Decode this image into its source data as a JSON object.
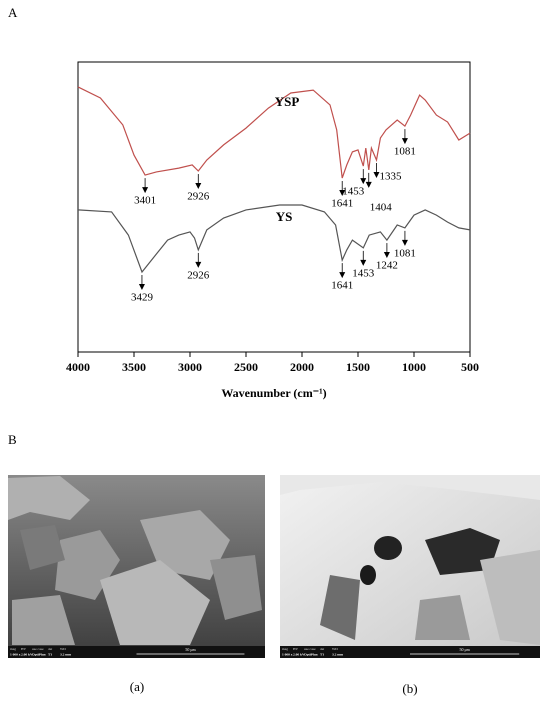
{
  "chart_data": {
    "type": "line",
    "xlabel": "Wavenumber (cm⁻¹)",
    "xlim": [
      4000,
      500
    ],
    "xticks": [
      4000,
      3500,
      3000,
      2500,
      2000,
      1500,
      1000,
      500
    ],
    "ylim": [
      0,
      100
    ],
    "series": [
      {
        "name": "YSP",
        "color": "#c0504d",
        "x": [
          4000,
          3800,
          3600,
          3500,
          3401,
          3300,
          3100,
          2980,
          2926,
          2850,
          2700,
          2500,
          2300,
          2100,
          1900,
          1750,
          1690,
          1641,
          1600,
          1550,
          1500,
          1453,
          1430,
          1404,
          1380,
          1335,
          1300,
          1250,
          1150,
          1081,
          1030,
          950,
          900,
          800,
          700,
          600,
          500
        ],
        "values": [
          91.4,
          87.6,
          78.3,
          67.9,
          61.0,
          62.1,
          63.4,
          64.5,
          62.4,
          66.2,
          71.4,
          77.2,
          84.1,
          89.3,
          90.3,
          85.2,
          76.6,
          60.0,
          64.5,
          69.0,
          69.7,
          64.1,
          70.3,
          62.8,
          70.3,
          66.2,
          73.8,
          76.6,
          80.0,
          77.9,
          81.7,
          88.6,
          86.9,
          81.7,
          79.3,
          73.1,
          75.5
        ],
        "peaks": [
          3401,
          2926,
          1641,
          1453,
          1404,
          1335,
          1081
        ]
      },
      {
        "name": "YS",
        "color": "#555555",
        "x": [
          4000,
          3700,
          3550,
          3429,
          3300,
          3200,
          3100,
          3000,
          2960,
          2926,
          2850,
          2700,
          2500,
          2200,
          2000,
          1800,
          1700,
          1641,
          1600,
          1550,
          1453,
          1400,
          1300,
          1242,
          1150,
          1081,
          1000,
          900,
          800,
          700,
          600,
          500
        ],
        "values": [
          49.0,
          48.3,
          40.3,
          27.6,
          33.8,
          38.6,
          40.3,
          41.4,
          39.3,
          35.2,
          42.1,
          46.2,
          49.0,
          50.7,
          50.7,
          48.3,
          43.8,
          31.7,
          35.2,
          38.6,
          35.9,
          40.3,
          41.4,
          38.6,
          43.8,
          42.8,
          47.2,
          49.0,
          47.2,
          44.8,
          42.8,
          42.1
        ],
        "peaks": [
          3429,
          2926,
          1641,
          1453,
          1242,
          1081
        ]
      }
    ]
  },
  "figure": {
    "panel_labels": [
      "A",
      "B"
    ],
    "images": [
      {
        "caption": "(a)",
        "info_header": [
          "mag",
          "HV",
          "use case",
          "det",
          "WD"
        ],
        "info_values": [
          "1 000 x",
          "2.00 kV",
          "OptiPlan",
          "T1",
          "3.2 mm"
        ],
        "scale_bar": "50 μm"
      },
      {
        "caption": "(b)",
        "info_header": [
          "mag",
          "HV",
          "use case",
          "det",
          "WD"
        ],
        "info_values": [
          "1 000 x",
          "2.00 kV",
          "OptiPlan",
          "T1",
          "3.2 mm"
        ],
        "scale_bar": "50 μm"
      }
    ]
  }
}
